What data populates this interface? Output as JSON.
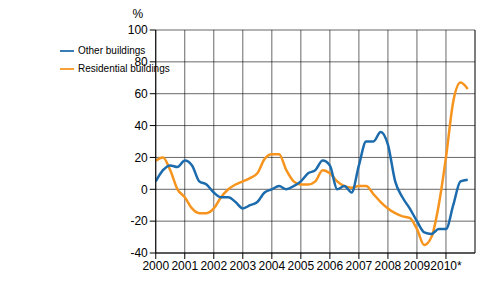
{
  "chart_data": {
    "type": "line",
    "y_label": "%",
    "x": [
      2000,
      2000.25,
      2000.5,
      2000.75,
      2001,
      2001.25,
      2001.5,
      2001.75,
      2002,
      2002.25,
      2002.5,
      2002.75,
      2003,
      2003.25,
      2003.5,
      2003.75,
      2004,
      2004.25,
      2004.5,
      2004.75,
      2005,
      2005.25,
      2005.5,
      2005.75,
      2006,
      2006.25,
      2006.5,
      2006.75,
      2007,
      2007.25,
      2007.5,
      2007.75,
      2008,
      2008.25,
      2008.5,
      2008.75,
      2009,
      2009.25,
      2009.5,
      2009.75,
      2010,
      2010.25,
      2010.5,
      2010.75
    ],
    "series": [
      {
        "name": "Residential buildings",
        "color": "#f7941d",
        "values": [
          18,
          20,
          12,
          0,
          -5,
          -12,
          -15,
          -15,
          -12,
          -5,
          0,
          3,
          5,
          7,
          10,
          19,
          22,
          22,
          12,
          5,
          3,
          3,
          5,
          12,
          10,
          5,
          2,
          1,
          2,
          2,
          -3,
          -8,
          -12,
          -15,
          -17,
          -18,
          -25,
          -35,
          -30,
          -10,
          20,
          55,
          67,
          63
        ]
      },
      {
        "name": "Other buildings",
        "color": "#1c6bad",
        "values": [
          5,
          12,
          15,
          14,
          18,
          15,
          5,
          3,
          -2,
          -5,
          -5,
          -8,
          -12,
          -10,
          -8,
          -2,
          0,
          2,
          0,
          2,
          5,
          10,
          12,
          18,
          15,
          0,
          2,
          -2,
          15,
          30,
          30,
          36,
          28,
          5,
          -5,
          -12,
          -20,
          -27,
          -28,
          -25,
          -25,
          -10,
          5,
          6
        ]
      }
    ],
    "xlim": [
      2000,
      2011
    ],
    "xticks": [
      2000,
      2001,
      2002,
      2003,
      2004,
      2005,
      2006,
      2007,
      2008,
      2009,
      {
        "value": 2010,
        "label": "2010*"
      }
    ],
    "ylim": [
      -40,
      100
    ],
    "yticks": [
      -40,
      -20,
      0,
      20,
      40,
      60,
      80,
      100
    ],
    "grid": true,
    "legend": "upper left"
  }
}
